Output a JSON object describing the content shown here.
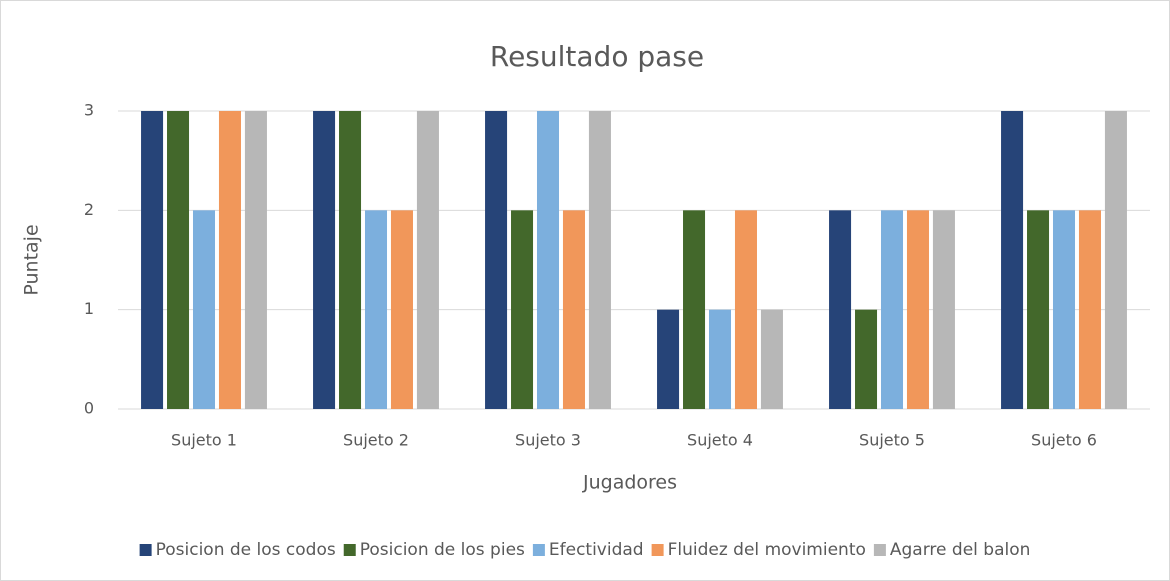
{
  "chart_data": {
    "type": "bar",
    "title": "Resultado pase",
    "xlabel": "Jugadores",
    "ylabel": "Puntaje",
    "categories": [
      "Sujeto 1",
      "Sujeto 2",
      "Sujeto 3",
      "Sujeto 4",
      "Sujeto 5",
      "Sujeto 6"
    ],
    "series": [
      {
        "name": "Posicion de los codos",
        "color": "#264478",
        "values": [
          3,
          3,
          3,
          1,
          2,
          3
        ]
      },
      {
        "name": "Posicion de los pies",
        "color": "#43682b",
        "values": [
          3,
          3,
          2,
          2,
          1,
          2
        ]
      },
      {
        "name": "Efectividad",
        "color": "#7cafdd",
        "values": [
          2,
          2,
          3,
          1,
          2,
          2
        ]
      },
      {
        "name": "Fluidez del movimiento",
        "color": "#f1975a",
        "values": [
          3,
          2,
          2,
          2,
          2,
          2
        ]
      },
      {
        "name": "Agarre del balon",
        "color": "#b7b7b7",
        "values": [
          3,
          3,
          3,
          1,
          2,
          3
        ]
      }
    ],
    "ylim": [
      0,
      3
    ],
    "yticks": [
      0,
      1,
      2,
      3
    ],
    "grid": true,
    "legend": "bottom"
  }
}
